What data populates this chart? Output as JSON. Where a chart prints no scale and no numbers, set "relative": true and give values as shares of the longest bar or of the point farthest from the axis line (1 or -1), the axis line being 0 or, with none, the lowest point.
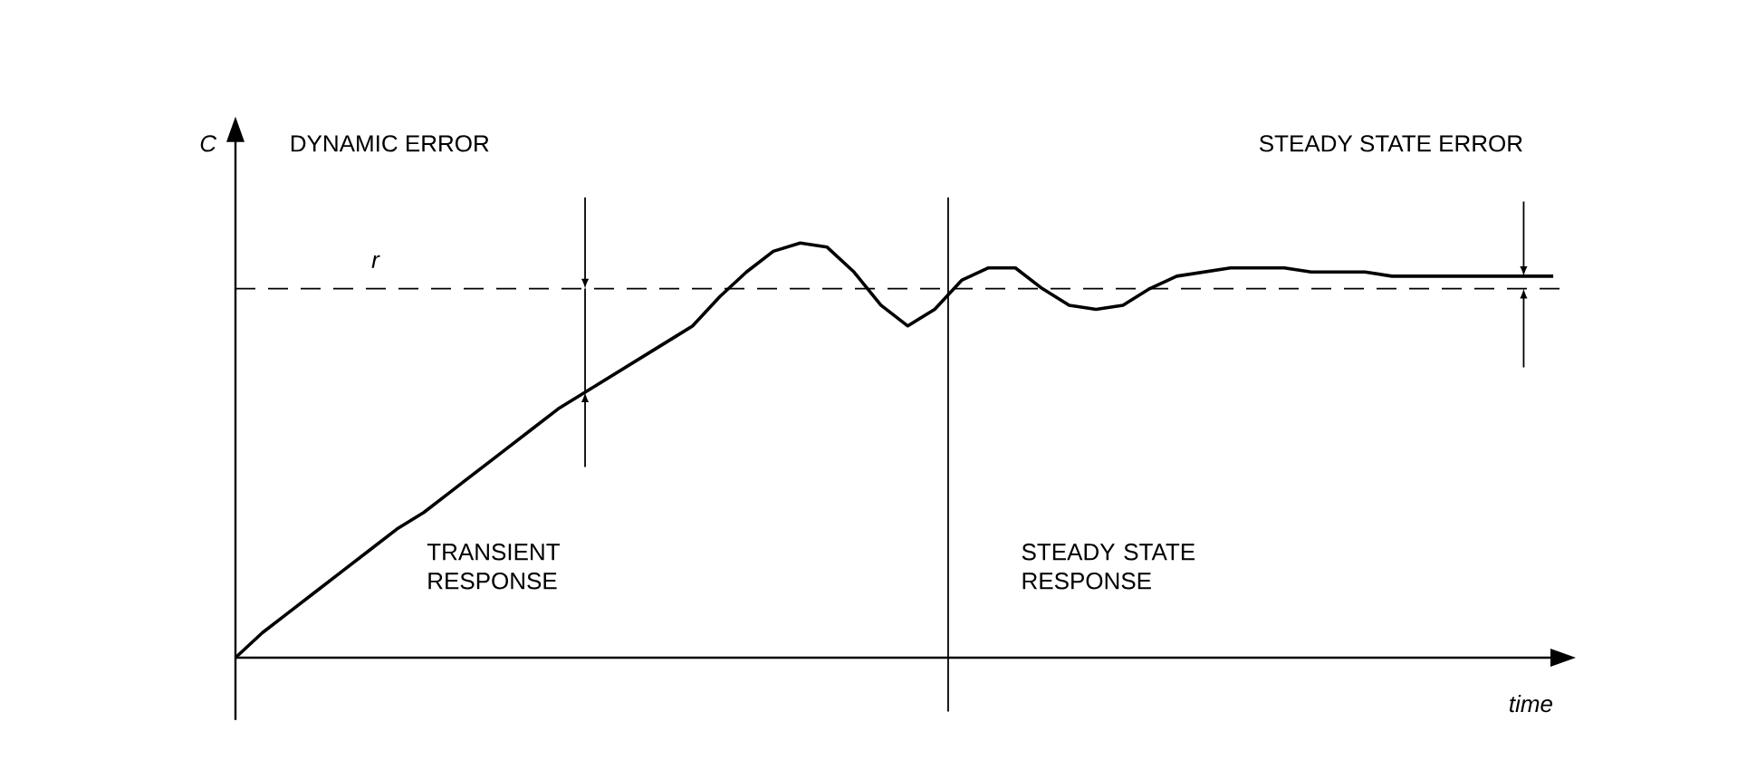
{
  "chart_data": {
    "type": "line",
    "relative": true,
    "xlabel": "time",
    "ylabel": "C",
    "categories": [
      null,
      null,
      null,
      null,
      null,
      null,
      null,
      null,
      null,
      null,
      null,
      null,
      null,
      null,
      null,
      null,
      null,
      null,
      null,
      null,
      null,
      null,
      null,
      null,
      null,
      null,
      null,
      null,
      null,
      null,
      null,
      null,
      null,
      null,
      null,
      null,
      null,
      null,
      null,
      null,
      null,
      null,
      null,
      null,
      null,
      null,
      null,
      null,
      null,
      null
    ],
    "series": [
      {
        "color": "#000000",
        "line_style": "solid",
        "values": [
          0,
          0.06,
          0.11,
          0.16,
          0.21,
          0.26,
          0.31,
          0.35,
          0.4,
          0.45,
          0.5,
          0.55,
          0.6,
          0.64,
          0.68,
          0.72,
          0.76,
          0.8,
          0.87,
          0.93,
          0.98,
          1,
          0.99,
          0.93,
          0.85,
          0.8,
          0.84,
          0.91,
          0.94,
          0.94,
          0.89,
          0.85,
          0.84,
          0.85,
          0.89,
          0.92,
          0.93,
          0.94,
          0.94,
          0.94,
          0.93,
          0.93,
          0.93,
          0.92,
          0.92,
          0.92,
          0.92,
          0.92,
          0.92,
          0.92
        ]
      }
    ],
    "ref_lines": [
      {
        "axis": "y",
        "value": 0.89,
        "label": "r",
        "line_style": "dashed"
      }
    ],
    "annotations": [
      "DYNAMIC ERROR",
      "STEADY STATE ERROR",
      "TRANSIENT RESPONSE",
      "STEADY STATE RESPONSE"
    ]
  }
}
